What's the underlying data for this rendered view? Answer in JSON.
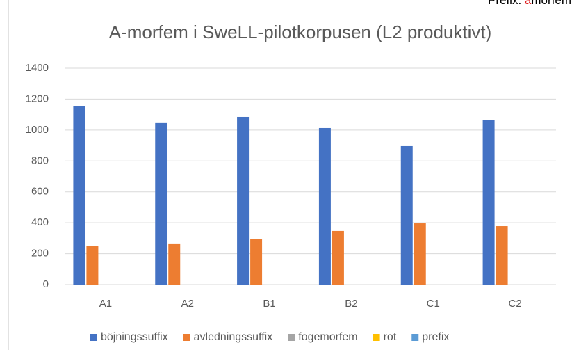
{
  "chart_data": {
    "type": "bar",
    "title": "A-morfem i SweLL-pilotkorpusen (L2 produktivt)",
    "annotation": {
      "parts": [
        {
          "text": "Prefix: ",
          "color": "#000000"
        },
        {
          "text": "a",
          "color": "#e02020"
        },
        {
          "text": "morfem",
          "color": "#000000"
        }
      ]
    },
    "categories": [
      "A1",
      "A2",
      "B1",
      "B2",
      "C1",
      "C2"
    ],
    "series": [
      {
        "name": "böjningssuffix",
        "color": "#4472c4",
        "values": [
          1155,
          1045,
          1085,
          1013,
          896,
          1063
        ]
      },
      {
        "name": "avledningssuffix",
        "color": "#ed7d31",
        "values": [
          248,
          266,
          293,
          347,
          396,
          378
        ]
      },
      {
        "name": "fogemorfem",
        "color": "#a5a5a5",
        "values": [
          0,
          0,
          0,
          0,
          0,
          0
        ]
      },
      {
        "name": "rot",
        "color": "#ffc000",
        "values": [
          0,
          0,
          0,
          0,
          0,
          0
        ]
      },
      {
        "name": "prefix",
        "color": "#5b9bd5",
        "values": [
          0,
          0,
          0,
          0,
          0,
          0
        ]
      }
    ],
    "ylim": [
      0,
      1400
    ],
    "yticks": [
      0,
      200,
      400,
      600,
      800,
      1000,
      1200,
      1400
    ],
    "grid": true,
    "legend": "bottom"
  }
}
